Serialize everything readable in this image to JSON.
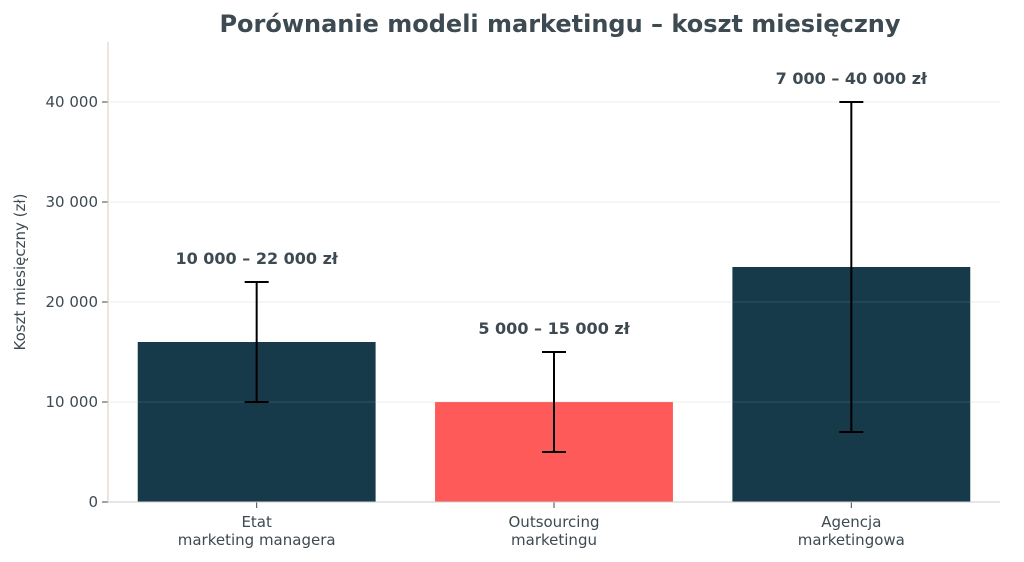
{
  "chart_data": {
    "type": "bar",
    "title": "Porównanie modeli marketingu – koszt miesięczny",
    "xlabel": "",
    "ylabel": "Koszt miesięczny (zł)",
    "ylim": [
      0,
      46000
    ],
    "yticks": [
      0,
      10000,
      20000,
      30000,
      40000
    ],
    "ytick_labels": [
      "0",
      "10 000",
      "20 000",
      "30 000",
      "40 000"
    ],
    "grid": "horizontal",
    "categories": [
      [
        "Etat",
        "marketing managera"
      ],
      [
        "Outsourcing",
        "marketingu"
      ],
      [
        "Agencja",
        "marketingowa"
      ]
    ],
    "values": [
      16000,
      10000,
      23500
    ],
    "error_low": [
      10000,
      5000,
      7000
    ],
    "error_high": [
      22000,
      15000,
      40000
    ],
    "data_labels": [
      "10 000 – 22 000 zł",
      "5 000 – 15 000 zł",
      "7 000 – 40 000 zł"
    ],
    "colors": [
      "#173a4a",
      "#ff5a5a",
      "#173a4a"
    ]
  }
}
